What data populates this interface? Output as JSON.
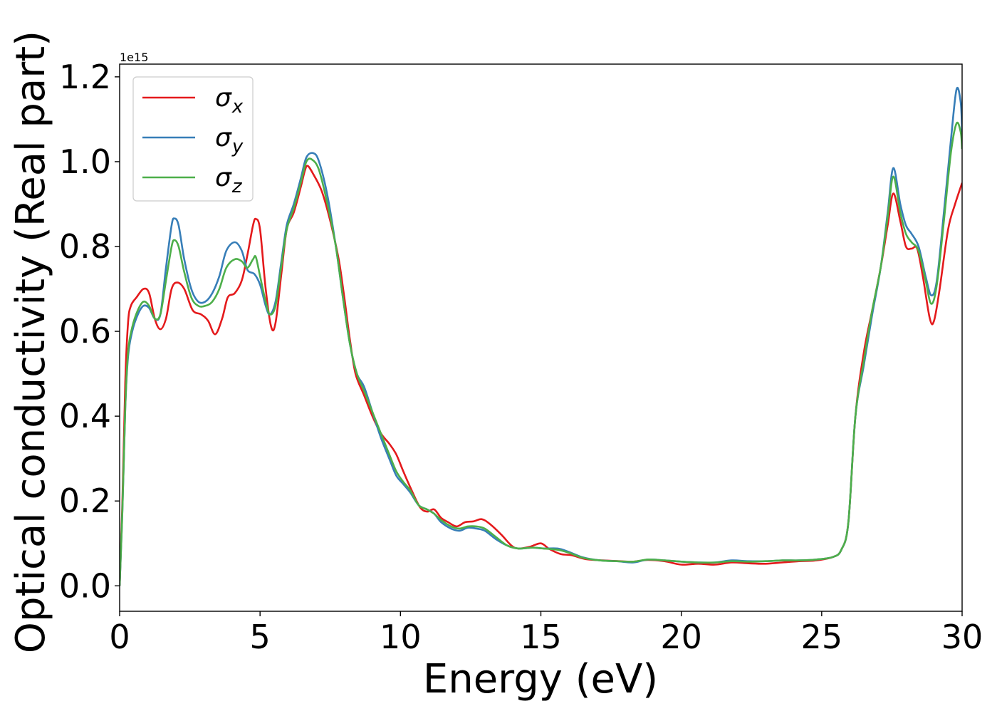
{
  "chart_data": {
    "type": "line",
    "xlabel": "Energy (eV)",
    "ylabel": "Optical conductivity (Real part)",
    "offset_text": "1e15",
    "scale": 1000000000000000.0,
    "xlim": [
      0,
      30
    ],
    "ylim": [
      -0.06,
      1.23
    ],
    "xticks": [
      0,
      5,
      10,
      15,
      20,
      25,
      30
    ],
    "yticks": [
      0.0,
      0.2,
      0.4,
      0.6,
      0.8,
      1.0,
      1.2
    ],
    "xtick_labels": [
      "0",
      "5",
      "10",
      "15",
      "20",
      "25",
      "30"
    ],
    "ytick_labels": [
      "0.0",
      "0.2",
      "0.4",
      "0.6",
      "0.8",
      "1.0",
      "1.2"
    ],
    "legend_position": "top-left",
    "grid": false,
    "series": [
      {
        "name": "σ",
        "sub": "x",
        "color": "#e41a1c",
        "points": [
          [
            0,
            0.0
          ],
          [
            0.1,
            0.2
          ],
          [
            0.2,
            0.48
          ],
          [
            0.3,
            0.62
          ],
          [
            0.4,
            0.66
          ],
          [
            0.6,
            0.68
          ],
          [
            0.85,
            0.7
          ],
          [
            1.05,
            0.69
          ],
          [
            1.25,
            0.63
          ],
          [
            1.45,
            0.605
          ],
          [
            1.65,
            0.63
          ],
          [
            1.85,
            0.7
          ],
          [
            2.05,
            0.715
          ],
          [
            2.3,
            0.7
          ],
          [
            2.6,
            0.65
          ],
          [
            2.9,
            0.64
          ],
          [
            3.15,
            0.625
          ],
          [
            3.4,
            0.593
          ],
          [
            3.65,
            0.63
          ],
          [
            3.85,
            0.68
          ],
          [
            4.1,
            0.69
          ],
          [
            4.35,
            0.72
          ],
          [
            4.55,
            0.78
          ],
          [
            4.75,
            0.85
          ],
          [
            4.85,
            0.865
          ],
          [
            5.0,
            0.84
          ],
          [
            5.2,
            0.7
          ],
          [
            5.4,
            0.61
          ],
          [
            5.55,
            0.62
          ],
          [
            5.75,
            0.73
          ],
          [
            5.95,
            0.84
          ],
          [
            6.2,
            0.88
          ],
          [
            6.45,
            0.94
          ],
          [
            6.6,
            0.98
          ],
          [
            6.7,
            0.99
          ],
          [
            6.9,
            0.97
          ],
          [
            7.2,
            0.93
          ],
          [
            7.5,
            0.86
          ],
          [
            7.8,
            0.77
          ],
          [
            8.0,
            0.68
          ],
          [
            8.2,
            0.58
          ],
          [
            8.4,
            0.5
          ],
          [
            8.7,
            0.45
          ],
          [
            9.0,
            0.4
          ],
          [
            9.3,
            0.36
          ],
          [
            9.6,
            0.335
          ],
          [
            9.85,
            0.31
          ],
          [
            10.1,
            0.27
          ],
          [
            10.4,
            0.225
          ],
          [
            10.7,
            0.185
          ],
          [
            10.95,
            0.175
          ],
          [
            11.2,
            0.18
          ],
          [
            11.45,
            0.16
          ],
          [
            11.7,
            0.15
          ],
          [
            12.0,
            0.14
          ],
          [
            12.3,
            0.15
          ],
          [
            12.6,
            0.152
          ],
          [
            12.9,
            0.157
          ],
          [
            13.2,
            0.145
          ],
          [
            13.6,
            0.12
          ],
          [
            13.95,
            0.095
          ],
          [
            14.2,
            0.088
          ],
          [
            14.6,
            0.092
          ],
          [
            15.0,
            0.1
          ],
          [
            15.3,
            0.087
          ],
          [
            15.7,
            0.075
          ],
          [
            16.1,
            0.072
          ],
          [
            16.6,
            0.063
          ],
          [
            17.2,
            0.06
          ],
          [
            17.8,
            0.058
          ],
          [
            18.3,
            0.057
          ],
          [
            18.8,
            0.061
          ],
          [
            19.4,
            0.058
          ],
          [
            20.0,
            0.05
          ],
          [
            20.6,
            0.052
          ],
          [
            21.2,
            0.05
          ],
          [
            21.8,
            0.055
          ],
          [
            22.4,
            0.053
          ],
          [
            23.0,
            0.052
          ],
          [
            23.6,
            0.055
          ],
          [
            24.2,
            0.058
          ],
          [
            24.8,
            0.06
          ],
          [
            25.4,
            0.068
          ],
          [
            25.7,
            0.085
          ],
          [
            25.95,
            0.15
          ],
          [
            26.2,
            0.4
          ],
          [
            26.5,
            0.55
          ],
          [
            26.8,
            0.65
          ],
          [
            27.1,
            0.75
          ],
          [
            27.35,
            0.85
          ],
          [
            27.55,
            0.925
          ],
          [
            27.8,
            0.86
          ],
          [
            28.0,
            0.8
          ],
          [
            28.2,
            0.795
          ],
          [
            28.4,
            0.795
          ],
          [
            28.6,
            0.73
          ],
          [
            28.85,
            0.63
          ],
          [
            29.0,
            0.625
          ],
          [
            29.2,
            0.7
          ],
          [
            29.5,
            0.84
          ],
          [
            29.75,
            0.9
          ],
          [
            30.0,
            0.95
          ]
        ]
      },
      {
        "name": "σ",
        "sub": "y",
        "color": "#377eb8",
        "points": [
          [
            0,
            0.0
          ],
          [
            0.1,
            0.18
          ],
          [
            0.2,
            0.42
          ],
          [
            0.3,
            0.54
          ],
          [
            0.45,
            0.6
          ],
          [
            0.65,
            0.64
          ],
          [
            0.85,
            0.66
          ],
          [
            1.05,
            0.655
          ],
          [
            1.25,
            0.63
          ],
          [
            1.45,
            0.64
          ],
          [
            1.65,
            0.75
          ],
          [
            1.85,
            0.85
          ],
          [
            1.95,
            0.866
          ],
          [
            2.1,
            0.85
          ],
          [
            2.3,
            0.77
          ],
          [
            2.55,
            0.7
          ],
          [
            2.8,
            0.67
          ],
          [
            3.05,
            0.67
          ],
          [
            3.3,
            0.69
          ],
          [
            3.55,
            0.73
          ],
          [
            3.8,
            0.79
          ],
          [
            4.1,
            0.81
          ],
          [
            4.35,
            0.79
          ],
          [
            4.55,
            0.745
          ],
          [
            4.8,
            0.735
          ],
          [
            5.0,
            0.71
          ],
          [
            5.2,
            0.66
          ],
          [
            5.35,
            0.64
          ],
          [
            5.55,
            0.67
          ],
          [
            5.75,
            0.76
          ],
          [
            5.95,
            0.85
          ],
          [
            6.2,
            0.9
          ],
          [
            6.45,
            0.96
          ],
          [
            6.65,
            1.01
          ],
          [
            6.9,
            1.02
          ],
          [
            7.1,
            1.0
          ],
          [
            7.4,
            0.92
          ],
          [
            7.7,
            0.8
          ],
          [
            7.95,
            0.68
          ],
          [
            8.2,
            0.57
          ],
          [
            8.45,
            0.5
          ],
          [
            8.7,
            0.47
          ],
          [
            9.0,
            0.41
          ],
          [
            9.3,
            0.35
          ],
          [
            9.6,
            0.3
          ],
          [
            9.85,
            0.26
          ],
          [
            10.1,
            0.24
          ],
          [
            10.35,
            0.22
          ],
          [
            10.65,
            0.19
          ],
          [
            10.95,
            0.18
          ],
          [
            11.2,
            0.17
          ],
          [
            11.45,
            0.15
          ],
          [
            11.8,
            0.135
          ],
          [
            12.1,
            0.13
          ],
          [
            12.4,
            0.137
          ],
          [
            12.7,
            0.135
          ],
          [
            13.0,
            0.13
          ],
          [
            13.4,
            0.11
          ],
          [
            13.8,
            0.095
          ],
          [
            14.2,
            0.088
          ],
          [
            14.7,
            0.09
          ],
          [
            15.1,
            0.088
          ],
          [
            15.6,
            0.088
          ],
          [
            16.0,
            0.08
          ],
          [
            16.5,
            0.067
          ],
          [
            17.1,
            0.06
          ],
          [
            17.7,
            0.058
          ],
          [
            18.3,
            0.055
          ],
          [
            18.8,
            0.062
          ],
          [
            19.4,
            0.06
          ],
          [
            20.0,
            0.057
          ],
          [
            20.6,
            0.055
          ],
          [
            21.2,
            0.055
          ],
          [
            21.8,
            0.06
          ],
          [
            22.4,
            0.058
          ],
          [
            23.0,
            0.058
          ],
          [
            23.6,
            0.06
          ],
          [
            24.2,
            0.06
          ],
          [
            24.8,
            0.062
          ],
          [
            25.4,
            0.068
          ],
          [
            25.7,
            0.085
          ],
          [
            25.95,
            0.15
          ],
          [
            26.2,
            0.4
          ],
          [
            26.5,
            0.52
          ],
          [
            26.8,
            0.64
          ],
          [
            27.1,
            0.75
          ],
          [
            27.35,
            0.88
          ],
          [
            27.55,
            0.985
          ],
          [
            27.8,
            0.9
          ],
          [
            28.0,
            0.85
          ],
          [
            28.2,
            0.83
          ],
          [
            28.45,
            0.8
          ],
          [
            28.7,
            0.73
          ],
          [
            28.9,
            0.685
          ],
          [
            29.1,
            0.72
          ],
          [
            29.35,
            0.88
          ],
          [
            29.6,
            1.05
          ],
          [
            29.8,
            1.17
          ],
          [
            29.95,
            1.14
          ],
          [
            30.0,
            1.07
          ]
        ]
      },
      {
        "name": "σ",
        "sub": "z",
        "color": "#4daf4a",
        "points": [
          [
            0,
            0.0
          ],
          [
            0.1,
            0.18
          ],
          [
            0.2,
            0.42
          ],
          [
            0.3,
            0.55
          ],
          [
            0.45,
            0.61
          ],
          [
            0.65,
            0.65
          ],
          [
            0.85,
            0.67
          ],
          [
            1.05,
            0.66
          ],
          [
            1.25,
            0.63
          ],
          [
            1.45,
            0.64
          ],
          [
            1.65,
            0.72
          ],
          [
            1.85,
            0.8
          ],
          [
            1.95,
            0.815
          ],
          [
            2.1,
            0.8
          ],
          [
            2.3,
            0.74
          ],
          [
            2.55,
            0.68
          ],
          [
            2.8,
            0.66
          ],
          [
            3.05,
            0.66
          ],
          [
            3.3,
            0.67
          ],
          [
            3.55,
            0.7
          ],
          [
            3.8,
            0.75
          ],
          [
            4.1,
            0.77
          ],
          [
            4.35,
            0.765
          ],
          [
            4.55,
            0.75
          ],
          [
            4.75,
            0.77
          ],
          [
            4.85,
            0.775
          ],
          [
            5.0,
            0.73
          ],
          [
            5.2,
            0.67
          ],
          [
            5.35,
            0.64
          ],
          [
            5.55,
            0.66
          ],
          [
            5.75,
            0.75
          ],
          [
            5.95,
            0.84
          ],
          [
            6.2,
            0.89
          ],
          [
            6.45,
            0.95
          ],
          [
            6.65,
            1.0
          ],
          [
            6.85,
            1.005
          ],
          [
            7.1,
            0.98
          ],
          [
            7.4,
            0.9
          ],
          [
            7.7,
            0.8
          ],
          [
            7.95,
            0.68
          ],
          [
            8.2,
            0.57
          ],
          [
            8.45,
            0.5
          ],
          [
            8.7,
            0.46
          ],
          [
            9.0,
            0.41
          ],
          [
            9.3,
            0.36
          ],
          [
            9.6,
            0.31
          ],
          [
            9.85,
            0.27
          ],
          [
            10.1,
            0.245
          ],
          [
            10.35,
            0.225
          ],
          [
            10.65,
            0.19
          ],
          [
            10.95,
            0.18
          ],
          [
            11.2,
            0.17
          ],
          [
            11.45,
            0.155
          ],
          [
            11.8,
            0.14
          ],
          [
            12.1,
            0.135
          ],
          [
            12.4,
            0.14
          ],
          [
            12.7,
            0.14
          ],
          [
            13.0,
            0.135
          ],
          [
            13.4,
            0.115
          ],
          [
            13.8,
            0.095
          ],
          [
            14.2,
            0.088
          ],
          [
            14.7,
            0.09
          ],
          [
            15.1,
            0.088
          ],
          [
            15.6,
            0.085
          ],
          [
            16.0,
            0.078
          ],
          [
            16.5,
            0.066
          ],
          [
            17.1,
            0.06
          ],
          [
            17.7,
            0.058
          ],
          [
            18.3,
            0.057
          ],
          [
            18.8,
            0.062
          ],
          [
            19.4,
            0.06
          ],
          [
            20.0,
            0.057
          ],
          [
            20.6,
            0.055
          ],
          [
            21.2,
            0.055
          ],
          [
            21.8,
            0.058
          ],
          [
            22.4,
            0.057
          ],
          [
            23.0,
            0.058
          ],
          [
            23.6,
            0.06
          ],
          [
            24.2,
            0.06
          ],
          [
            24.8,
            0.062
          ],
          [
            25.4,
            0.068
          ],
          [
            25.7,
            0.085
          ],
          [
            25.95,
            0.15
          ],
          [
            26.2,
            0.4
          ],
          [
            26.5,
            0.53
          ],
          [
            26.8,
            0.65
          ],
          [
            27.1,
            0.75
          ],
          [
            27.35,
            0.87
          ],
          [
            27.55,
            0.965
          ],
          [
            27.8,
            0.88
          ],
          [
            28.0,
            0.83
          ],
          [
            28.2,
            0.81
          ],
          [
            28.45,
            0.79
          ],
          [
            28.7,
            0.72
          ],
          [
            28.9,
            0.665
          ],
          [
            29.1,
            0.71
          ],
          [
            29.35,
            0.86
          ],
          [
            29.6,
            1.02
          ],
          [
            29.8,
            1.09
          ],
          [
            29.95,
            1.07
          ],
          [
            30.0,
            1.03
          ]
        ]
      }
    ]
  }
}
